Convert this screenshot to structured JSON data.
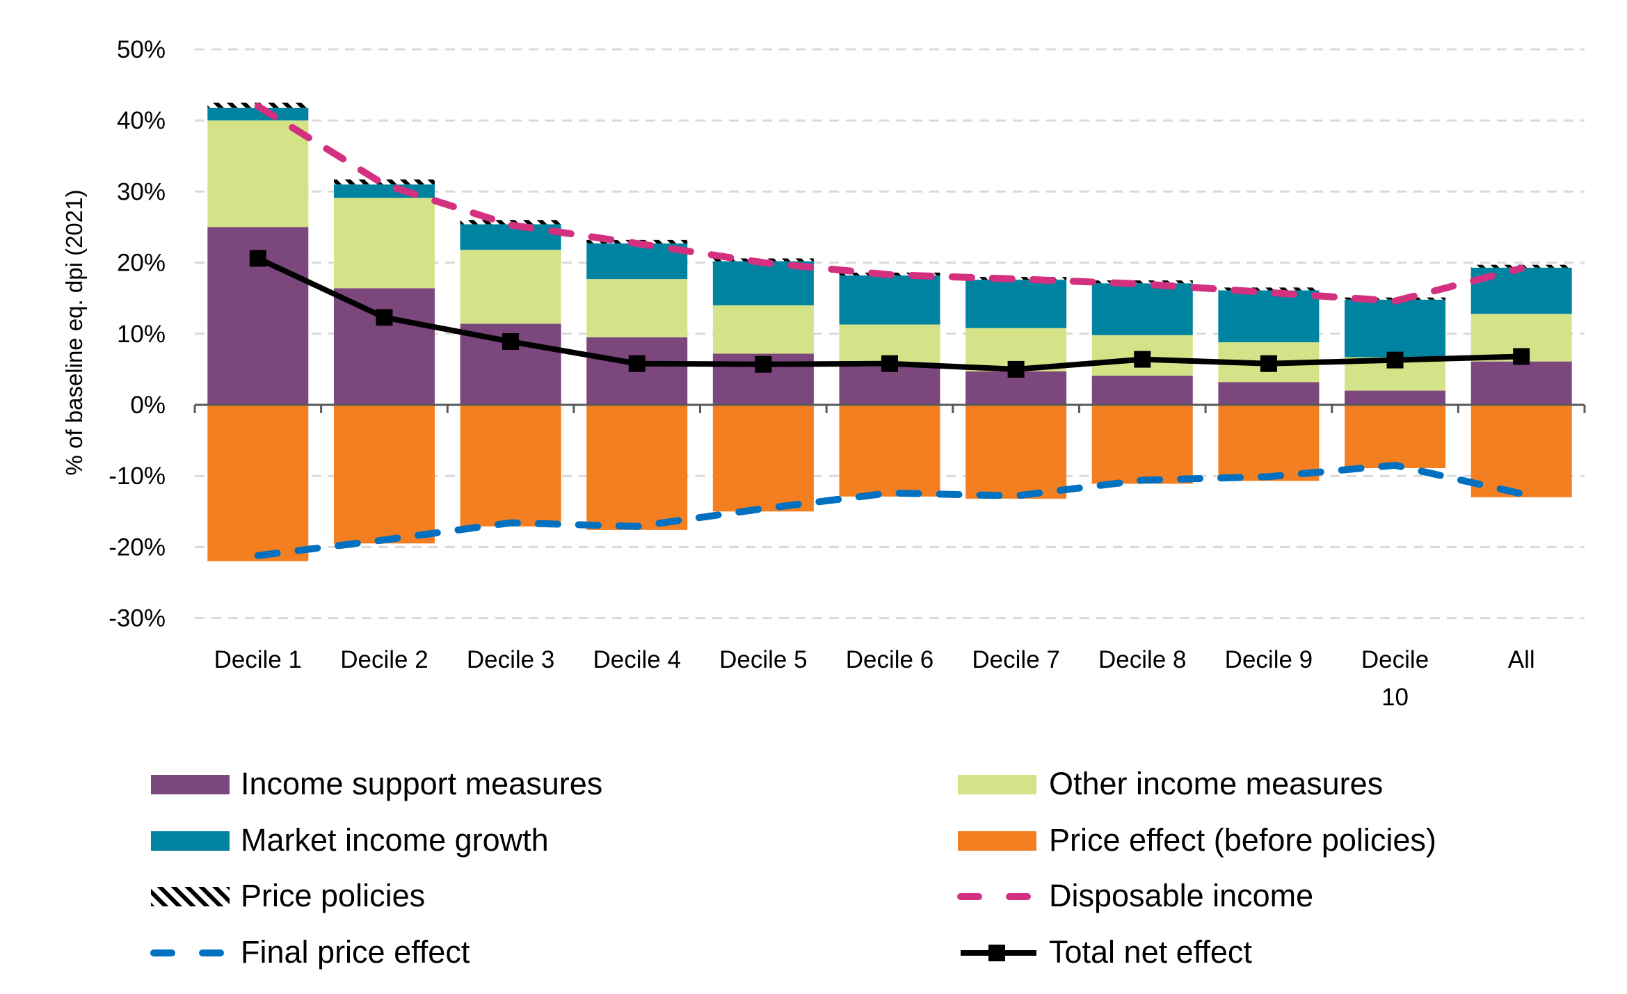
{
  "chart_data": {
    "type": "bar",
    "stacked": true,
    "title": "",
    "xlabel": "",
    "ylabel": "% of baseline eq. dpi (2021)",
    "ylim": [
      -30,
      50
    ],
    "yticks": [
      -30,
      -20,
      -10,
      0,
      10,
      20,
      30,
      40,
      50
    ],
    "ytick_labels": [
      "-30%",
      "-20%",
      "-10%",
      "0%",
      "10%",
      "20%",
      "30%",
      "40%",
      "50%"
    ],
    "grid": true,
    "legend_position": "bottom",
    "categories": [
      "Decile  1",
      "Decile  2",
      "Decile  3",
      "Decile  4",
      "Decile  5",
      "Decile  6",
      "Decile  7",
      "Decile  8",
      "Decile  9",
      "Decile 10",
      "All"
    ],
    "series": [
      {
        "name": "Income support measures",
        "kind": "bar",
        "color": "#7B477D",
        "values": [
          25.0,
          16.4,
          11.4,
          9.5,
          7.2,
          5.4,
          4.7,
          4.1,
          3.2,
          2.0,
          6.1
        ]
      },
      {
        "name": "Other income measures",
        "kind": "bar",
        "color": "#D5E388",
        "values": [
          15.0,
          12.7,
          10.4,
          8.2,
          6.8,
          5.9,
          6.1,
          5.7,
          5.6,
          4.7,
          6.7
        ]
      },
      {
        "name": "Market income growth",
        "kind": "bar",
        "color": "#0083A1",
        "values": [
          1.8,
          1.9,
          3.6,
          5.0,
          6.2,
          6.9,
          6.8,
          7.3,
          7.3,
          8.1,
          6.5
        ]
      },
      {
        "name": "Price effect (before policies)",
        "kind": "bar",
        "color": "#F47F20",
        "values": [
          -22.0,
          -19.5,
          -17.1,
          -17.6,
          -15.0,
          -12.9,
          -13.2,
          -11.1,
          -10.7,
          -8.9,
          -13.0
        ]
      },
      {
        "name": "Price policies",
        "kind": "bar",
        "color": "#000000",
        "pattern": "diagonal-hatch",
        "values": [
          0.7,
          0.7,
          0.6,
          0.5,
          0.4,
          0.4,
          0.4,
          0.4,
          0.4,
          0.3,
          0.4
        ]
      },
      {
        "name": "Disposable income",
        "kind": "line",
        "style": "dashed",
        "color": "#D3317F",
        "values": [
          42.0,
          31.0,
          25.3,
          22.7,
          20.0,
          18.3,
          17.7,
          17.0,
          15.8,
          14.6,
          19.2
        ]
      },
      {
        "name": "Final price effect",
        "kind": "line",
        "style": "dashed",
        "color": "#0070C0",
        "values": [
          -21.2,
          -19.0,
          -16.6,
          -17.1,
          -14.6,
          -12.4,
          -12.8,
          -10.6,
          -10.1,
          -8.5,
          -12.5
        ]
      },
      {
        "name": "Total net effect",
        "kind": "line",
        "style": "solid",
        "marker": "square",
        "color": "#000000",
        "values": [
          20.6,
          12.3,
          8.9,
          5.8,
          5.7,
          5.8,
          5.0,
          6.4,
          5.8,
          6.3,
          6.8
        ]
      }
    ],
    "legend": [
      "Income support measures",
      "Other income measures",
      "Market income growth",
      "Price effect (before policies)",
      "Price policies",
      "Disposable income",
      "Final price effect",
      "Total net effect"
    ]
  }
}
